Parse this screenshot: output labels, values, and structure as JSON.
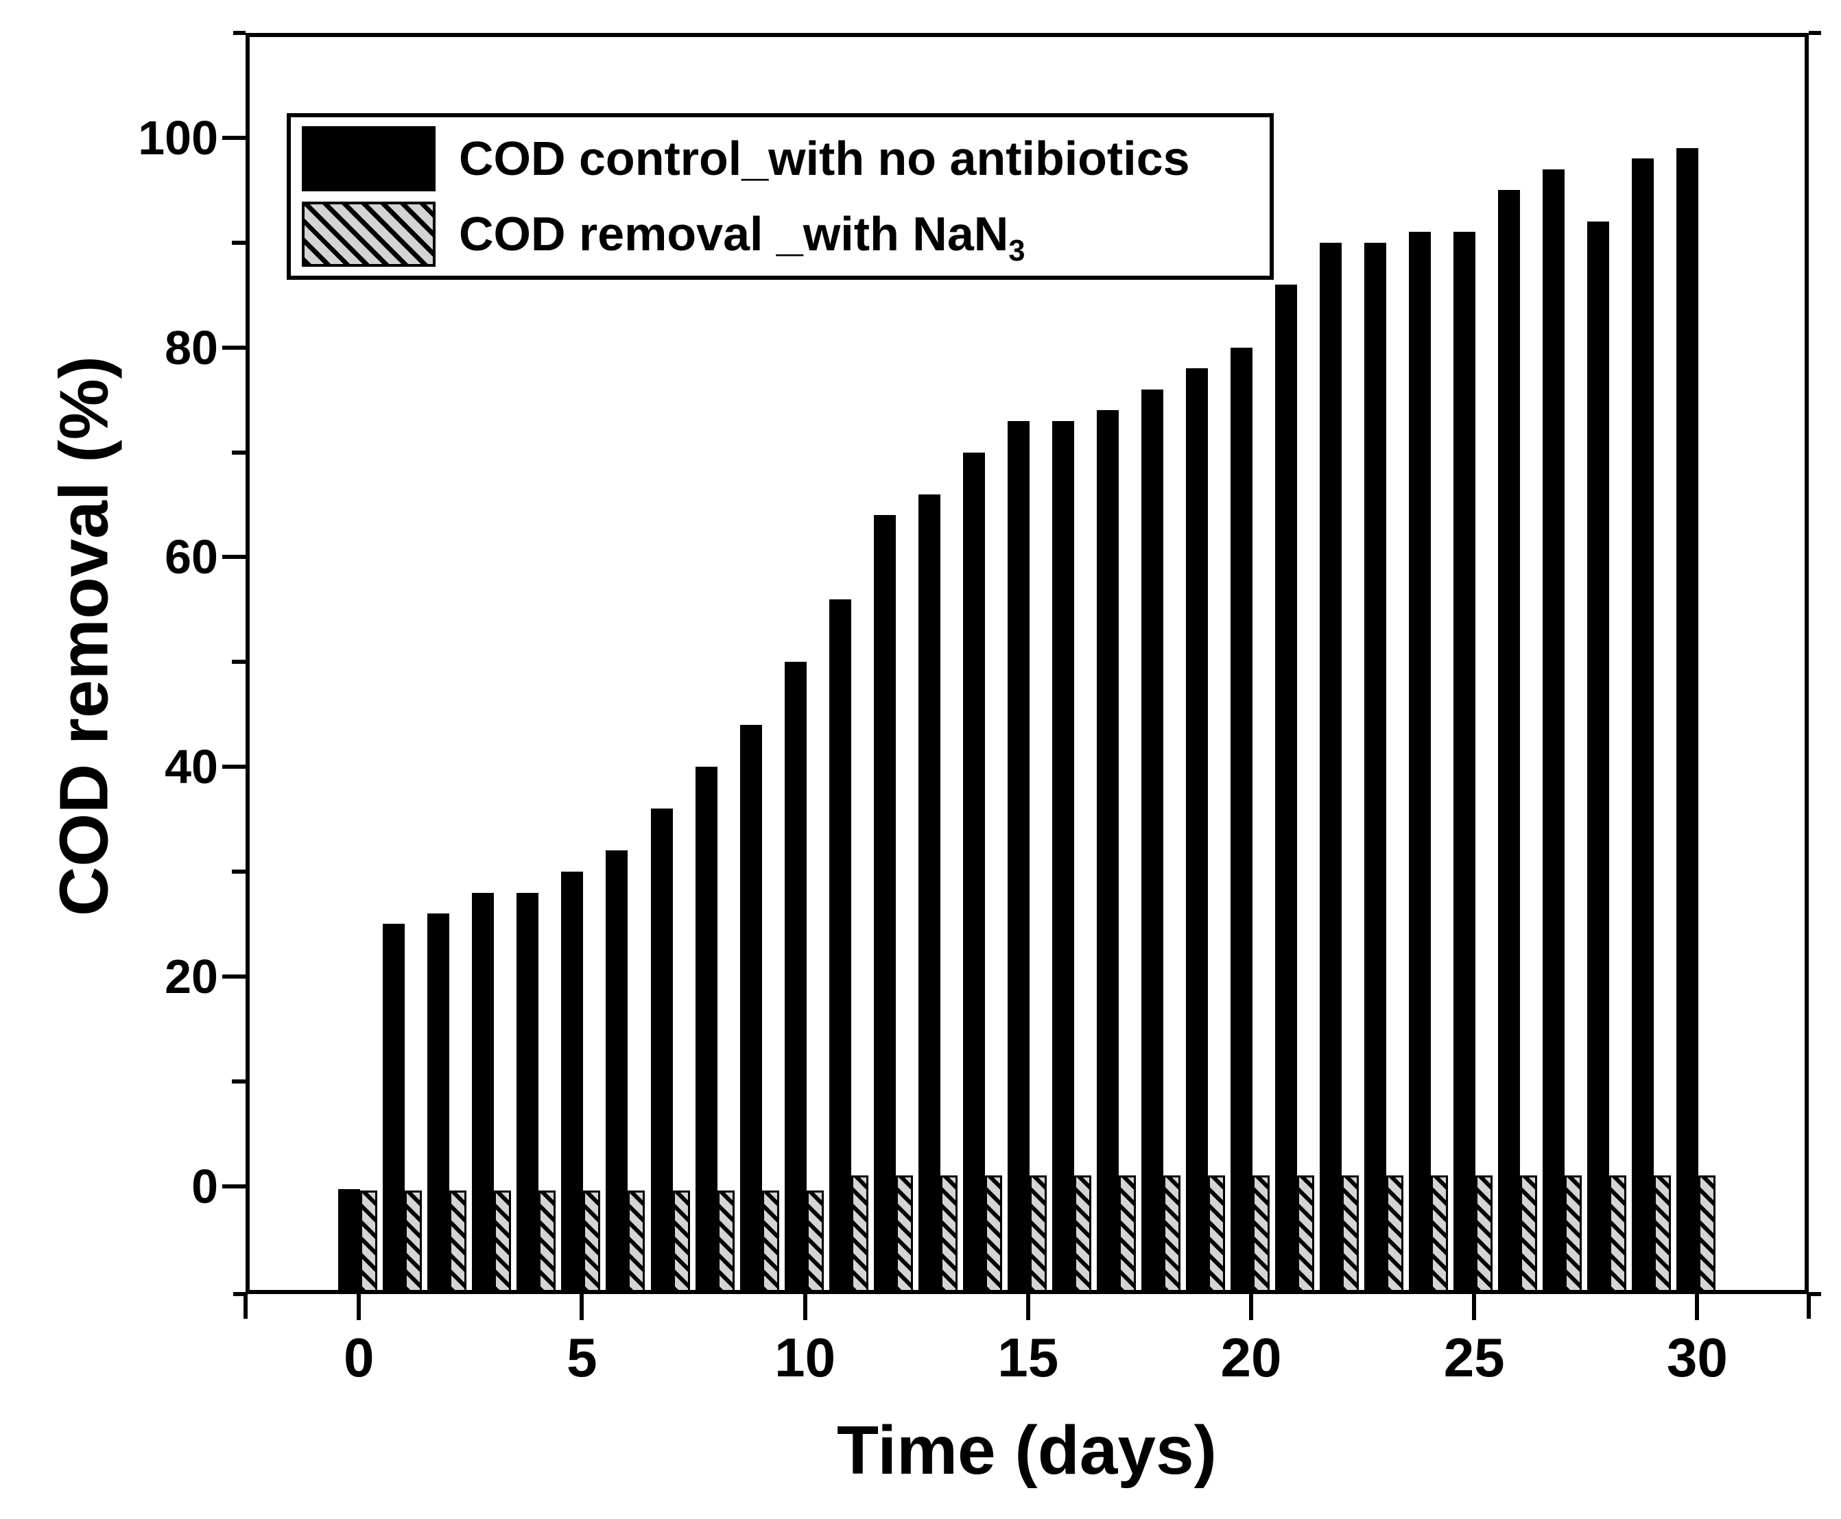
{
  "figure": {
    "y_axis": {
      "label": "COD removal (%)",
      "major_ticks": [
        0,
        20,
        40,
        60,
        80,
        100
      ],
      "minor_ticks": [
        10,
        30,
        50,
        70,
        90
      ],
      "range": [
        -10.3,
        110
      ]
    },
    "x_axis": {
      "label": "Time (days)",
      "major_ticks": [
        0,
        5,
        10,
        15,
        20,
        25,
        30
      ],
      "range": [
        -2.54,
        32.5
      ]
    },
    "legend": [
      {
        "label": "COD control_with no antibiotics",
        "swatch": "solid-black"
      },
      {
        "label_main": "COD removal _with NaN",
        "label_sub": "3",
        "swatch": "hatched-gray"
      }
    ]
  },
  "chart_data": {
    "type": "bar",
    "title": "",
    "xlabel": "Time (days)",
    "ylabel": "COD removal (%)",
    "xlim": [
      -2.54,
      32.5
    ],
    "ylim": [
      -10.3,
      110
    ],
    "grid": false,
    "legend_position": "top-left-inside",
    "bar_baseline": "bars drawn from plot bottom (clipped below axis floor)",
    "x": [
      0,
      1,
      2,
      3,
      4,
      5,
      6,
      7,
      8,
      9,
      10,
      11,
      12,
      13,
      14,
      15,
      16,
      17,
      18,
      19,
      20,
      21,
      22,
      23,
      24,
      25,
      26,
      27,
      28,
      29,
      30
    ],
    "series": [
      {
        "name": "COD control_with no antibiotics",
        "style": "solid-black",
        "values": [
          -0.3,
          25,
          26,
          28,
          28,
          30,
          32,
          36,
          40,
          44,
          50,
          56,
          64,
          66,
          70,
          73,
          73,
          74,
          76,
          78,
          80,
          86,
          90,
          90,
          91,
          91,
          95,
          97,
          92,
          98,
          99
        ]
      },
      {
        "name": "COD removal _with NaN3",
        "style": "hatched-gray",
        "values": [
          -0.4,
          -0.4,
          -0.4,
          -0.4,
          -0.4,
          -0.4,
          -0.4,
          -0.4,
          -0.4,
          -0.4,
          -0.4,
          1,
          1,
          1,
          1,
          1,
          1,
          1,
          1,
          1,
          1,
          1,
          1,
          1,
          1,
          1,
          1,
          1,
          1,
          1,
          1
        ]
      }
    ]
  }
}
